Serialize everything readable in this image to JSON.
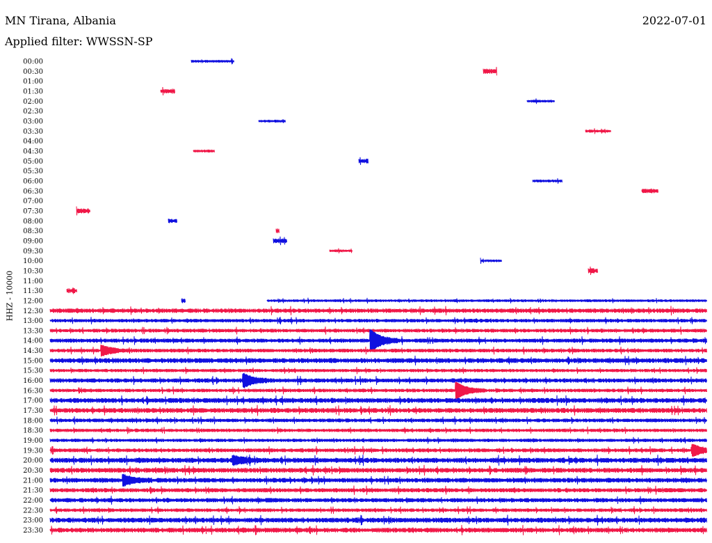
{
  "header": {
    "station": "MN Tirana, Albania",
    "date": "2022-07-01",
    "filter": "Applied filter: WWSSN-SP"
  },
  "chart_data": {
    "type": "line",
    "title": "MN Tirana, Albania",
    "ylabel": "HHZ - 10000",
    "colors": [
      "#1010e0",
      "#f01848"
    ],
    "time_labels": [
      "00:00",
      "00:30",
      "01:00",
      "01:30",
      "02:00",
      "02:30",
      "03:00",
      "03:30",
      "04:00",
      "04:30",
      "05:00",
      "05:30",
      "06:00",
      "06:30",
      "07:00",
      "07:30",
      "08:00",
      "08:30",
      "09:00",
      "09:30",
      "10:00",
      "10:30",
      "11:00",
      "11:30",
      "12:00",
      "12:30",
      "13:00",
      "13:30",
      "14:00",
      "14:30",
      "15:00",
      "15:30",
      "16:00",
      "16:30",
      "17:00",
      "17:30",
      "18:00",
      "18:30",
      "19:00",
      "19:30",
      "20:00",
      "20:30",
      "21:00",
      "21:30",
      "22:00",
      "22:30",
      "23:00",
      "23:30"
    ],
    "continuous_from": "12:00",
    "segments": [
      {
        "row": "00:00",
        "start": 0.215,
        "end": 0.28
      },
      {
        "row": "00:30",
        "start": 0.66,
        "end": 0.68
      },
      {
        "row": "01:30",
        "start": 0.168,
        "end": 0.19
      },
      {
        "row": "02:00",
        "start": 0.727,
        "end": 0.768
      },
      {
        "row": "03:00",
        "start": 0.318,
        "end": 0.358
      },
      {
        "row": "03:30",
        "start": 0.816,
        "end": 0.854
      },
      {
        "row": "04:30",
        "start": 0.218,
        "end": 0.25
      },
      {
        "row": "05:00",
        "start": 0.47,
        "end": 0.484
      },
      {
        "row": "06:00",
        "start": 0.735,
        "end": 0.78
      },
      {
        "row": "06:30",
        "start": 0.902,
        "end": 0.926
      },
      {
        "row": "07:30",
        "start": 0.04,
        "end": 0.06
      },
      {
        "row": "08:00",
        "start": 0.18,
        "end": 0.193
      },
      {
        "row": "08:30",
        "start": 0.344,
        "end": 0.348
      },
      {
        "row": "09:00",
        "start": 0.34,
        "end": 0.36
      },
      {
        "row": "09:30",
        "start": 0.426,
        "end": 0.46
      },
      {
        "row": "10:00",
        "start": 0.656,
        "end": 0.687
      },
      {
        "row": "10:30",
        "start": 0.82,
        "end": 0.834
      },
      {
        "row": "11:30",
        "start": 0.025,
        "end": 0.04
      },
      {
        "row": "12:00",
        "start": 0.2,
        "end": 0.206
      },
      {
        "row": "12:00",
        "start": 0.33,
        "end": 1.0
      }
    ],
    "events": [
      {
        "row": "14:00",
        "pos": 0.49,
        "amp": 13
      },
      {
        "row": "16:00",
        "pos": 0.296,
        "amp": 8
      },
      {
        "row": "16:30",
        "pos": 0.62,
        "amp": 10
      },
      {
        "row": "19:30",
        "pos": 0.98,
        "amp": 7
      },
      {
        "row": "21:00",
        "pos": 0.113,
        "amp": 6
      },
      {
        "row": "14:30",
        "pos": 0.08,
        "amp": 6
      },
      {
        "row": "20:00",
        "pos": 0.28,
        "amp": 5
      }
    ]
  }
}
